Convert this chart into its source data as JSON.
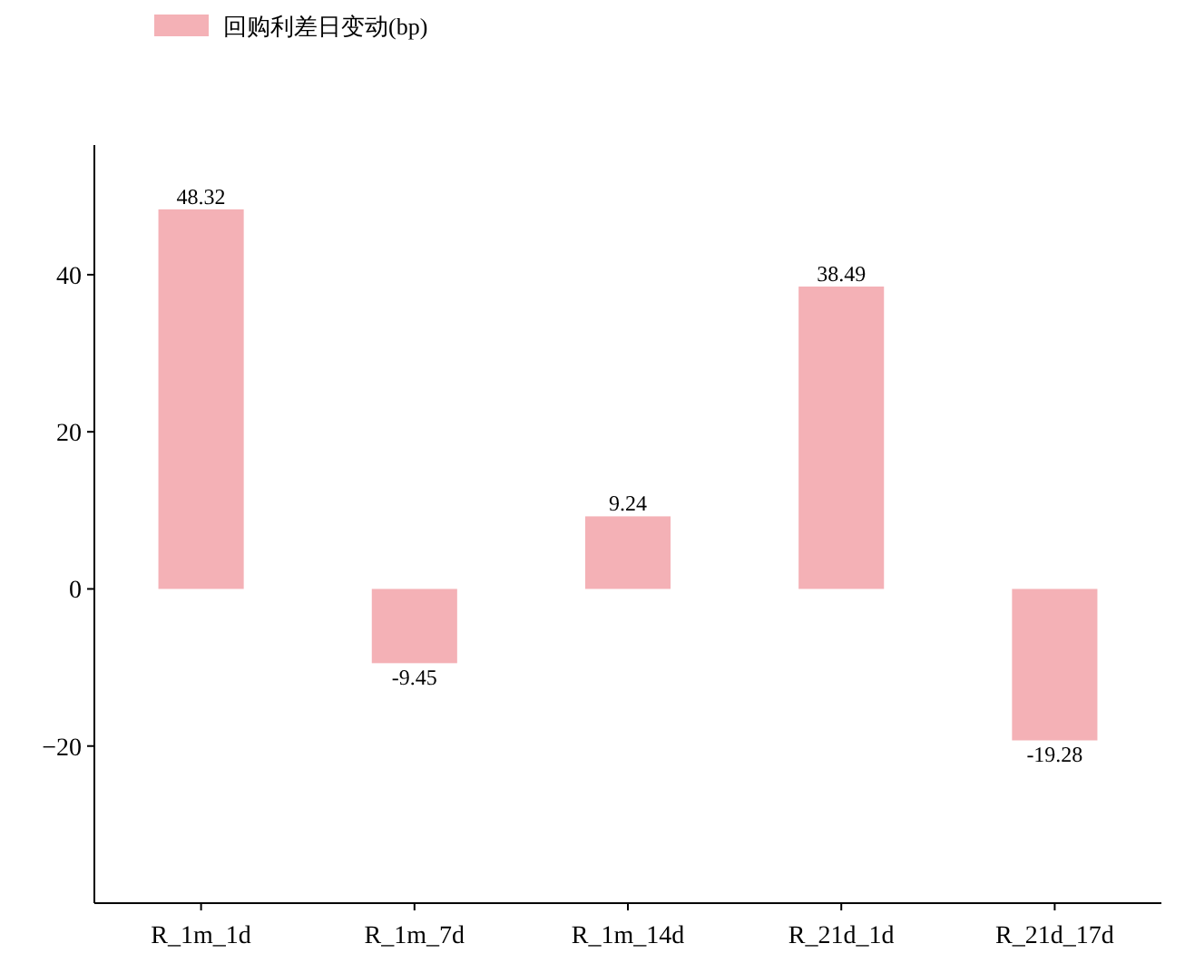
{
  "chart_data": {
    "type": "bar",
    "categories": [
      "R_1m_1d",
      "R_1m_7d",
      "R_1m_14d",
      "R_21d_1d",
      "R_21d_17d"
    ],
    "series": [
      {
        "name": "回购利差日变动(bp)",
        "color": "#f4b1b6",
        "values": [
          48.32,
          -9.45,
          9.24,
          38.49,
          -19.28
        ]
      }
    ],
    "ylim": [
      -40,
      56.5
    ],
    "yticks": [
      {
        "value": -20,
        "label": "−20"
      },
      0,
      20,
      40
    ],
    "data_labels": true,
    "legend": "top left"
  }
}
